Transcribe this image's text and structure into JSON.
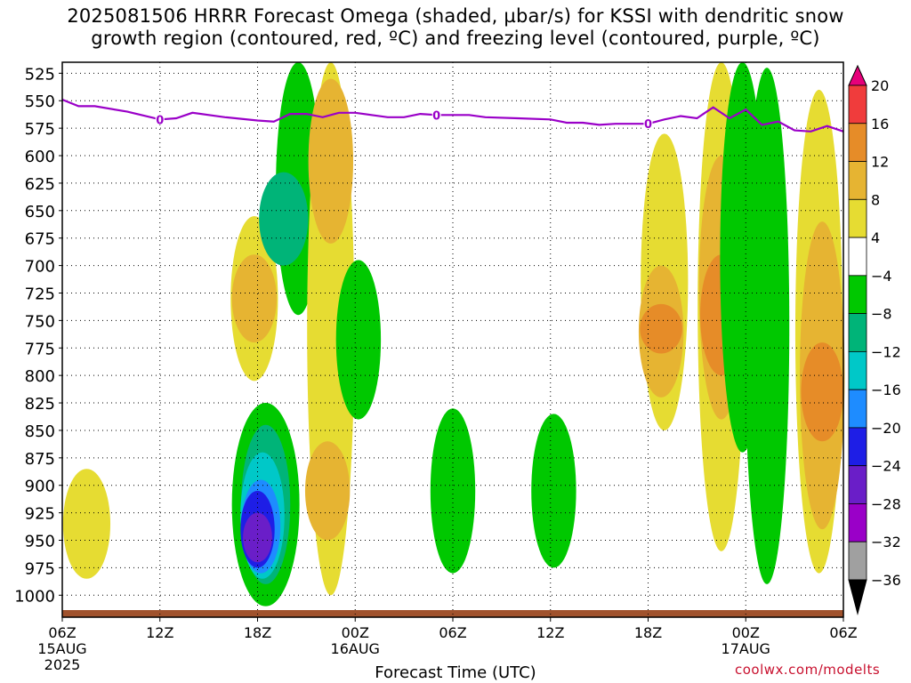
{
  "title": {
    "line1": "2025081506 HRRR Forecast Omega (shaded, µbar/s) for KSSI with dendritic snow",
    "line2": "growth region (contoured, red, ºC) and freezing level (contoured, purple, ºC)"
  },
  "credit": "coolwx.com/modelts",
  "chart_data": {
    "type": "heatmap",
    "title": "2025081506 HRRR Forecast Omega (shaded, µbar/s) for KSSI with dendritic snow growth region (contoured, red, ºC) and freezing level (contoured, purple, ºC)",
    "xlabel": "Forecast Time (UTC)",
    "ylabel": "",
    "x_range_hours": [
      0,
      48
    ],
    "x_ticks": [
      {
        "hour": 0,
        "label": "06Z",
        "date": "15AUG",
        "year": "2025"
      },
      {
        "hour": 6,
        "label": "12Z"
      },
      {
        "hour": 12,
        "label": "18Z"
      },
      {
        "hour": 18,
        "label": "00Z",
        "date": "16AUG"
      },
      {
        "hour": 24,
        "label": "06Z"
      },
      {
        "hour": 30,
        "label": "12Z"
      },
      {
        "hour": 36,
        "label": "18Z"
      },
      {
        "hour": 42,
        "label": "00Z",
        "date": "17AUG"
      },
      {
        "hour": 48,
        "label": "06Z"
      }
    ],
    "y_range": [
      1020,
      515
    ],
    "y_ticks": [
      525,
      550,
      575,
      600,
      625,
      650,
      675,
      700,
      725,
      750,
      775,
      800,
      825,
      850,
      875,
      900,
      925,
      950,
      975,
      1000
    ],
    "grid": true,
    "colorbar": {
      "levels": [
        -36,
        -32,
        -28,
        -24,
        -20,
        -16,
        -12,
        -8,
        -4,
        4,
        8,
        12,
        16,
        20
      ],
      "colors": [
        "#000000",
        "#a0a0a0",
        "#9a00c8",
        "#6a1ec8",
        "#1e1ee6",
        "#1e8cff",
        "#00c8c8",
        "#00b478",
        "#00c800",
        "#ffffff",
        "#e6dc32",
        "#e6b432",
        "#e68c28",
        "#f03c3c",
        "#e6007a"
      ]
    },
    "freezing_level": {
      "color": "#9a00c8",
      "label": "0",
      "points": [
        [
          0,
          549
        ],
        [
          1,
          555
        ],
        [
          2,
          555
        ],
        [
          4,
          560
        ],
        [
          6,
          567
        ],
        [
          7,
          566
        ],
        [
          8,
          561
        ],
        [
          10,
          565
        ],
        [
          12,
          568
        ],
        [
          13,
          569
        ],
        [
          14,
          562
        ],
        [
          15,
          562
        ],
        [
          16,
          565
        ],
        [
          17,
          561
        ],
        [
          18,
          561
        ],
        [
          19,
          563
        ],
        [
          20,
          565
        ],
        [
          21,
          565
        ],
        [
          22,
          562
        ],
        [
          23,
          563
        ],
        [
          24,
          563
        ],
        [
          25,
          563
        ],
        [
          26,
          565
        ],
        [
          28,
          566
        ],
        [
          30,
          567
        ],
        [
          31,
          570
        ],
        [
          32,
          570
        ],
        [
          33,
          572
        ],
        [
          34,
          571
        ],
        [
          36,
          571
        ],
        [
          37,
          567
        ],
        [
          38,
          564
        ],
        [
          39,
          566
        ],
        [
          39.5,
          561
        ],
        [
          40,
          556
        ],
        [
          41,
          566
        ],
        [
          42,
          558
        ],
        [
          43,
          572
        ],
        [
          44,
          569
        ],
        [
          45,
          577
        ],
        [
          46,
          578
        ],
        [
          47,
          573
        ],
        [
          48,
          578
        ]
      ],
      "labels_at_hours": [
        6,
        23,
        36
      ]
    },
    "omega_regions": [
      {
        "level": 4,
        "center_hour": 1.5,
        "p_top": 885,
        "p_bottom": 985,
        "note": "weak rising"
      },
      {
        "level": 4,
        "center_hour": 11.8,
        "p_top": 655,
        "p_bottom": 805
      },
      {
        "level": 8,
        "center_hour": 11.8,
        "p_top": 690,
        "p_bottom": 770
      },
      {
        "level": -8,
        "center_hour": 12.5,
        "p_top": 825,
        "p_bottom": 1010
      },
      {
        "level": -12,
        "center_hour": 12.5,
        "p_top": 845,
        "p_bottom": 990
      },
      {
        "level": -16,
        "center_hour": 12.3,
        "p_top": 870,
        "p_bottom": 985
      },
      {
        "level": -20,
        "center_hour": 12.2,
        "p_top": 895,
        "p_bottom": 980
      },
      {
        "level": -24,
        "center_hour": 12.0,
        "p_top": 905,
        "p_bottom": 975
      },
      {
        "level": -28,
        "center_hour": 12.0,
        "p_top": 925,
        "p_bottom": 970
      },
      {
        "level": -8,
        "center_hour": 14.5,
        "p_top": 515,
        "p_bottom": 745
      },
      {
        "level": -12,
        "center_hour": 13.6,
        "p_top": 615,
        "p_bottom": 700
      },
      {
        "level": 4,
        "center_hour": 16.5,
        "p_top": 515,
        "p_bottom": 1000
      },
      {
        "level": 8,
        "center_hour": 16.5,
        "p_top": 530,
        "p_bottom": 680
      },
      {
        "level": 8,
        "center_hour": 16.3,
        "p_top": 860,
        "p_bottom": 950
      },
      {
        "level": -8,
        "center_hour": 18.2,
        "p_top": 695,
        "p_bottom": 840
      },
      {
        "level": -8,
        "center_hour": 24.0,
        "p_top": 830,
        "p_bottom": 980
      },
      {
        "level": -8,
        "center_hour": 30.2,
        "p_top": 835,
        "p_bottom": 975
      },
      {
        "level": 4,
        "center_hour": 37.0,
        "p_top": 580,
        "p_bottom": 850
      },
      {
        "level": 8,
        "center_hour": 36.8,
        "p_top": 700,
        "p_bottom": 820
      },
      {
        "level": 12,
        "center_hour": 36.8,
        "p_top": 735,
        "p_bottom": 780
      },
      {
        "level": 4,
        "center_hour": 40.5,
        "p_top": 515,
        "p_bottom": 960
      },
      {
        "level": 8,
        "center_hour": 40.5,
        "p_top": 600,
        "p_bottom": 840
      },
      {
        "level": 12,
        "center_hour": 40.5,
        "p_top": 690,
        "p_bottom": 800
      },
      {
        "level": -8,
        "center_hour": 41.8,
        "p_top": 515,
        "p_bottom": 870
      },
      {
        "level": -8,
        "center_hour": 43.3,
        "p_top": 520,
        "p_bottom": 990
      },
      {
        "level": 4,
        "center_hour": 46.5,
        "p_top": 540,
        "p_bottom": 980
      },
      {
        "level": 8,
        "center_hour": 46.7,
        "p_top": 660,
        "p_bottom": 940
      },
      {
        "level": 12,
        "center_hour": 46.7,
        "p_top": 770,
        "p_bottom": 860
      }
    ]
  }
}
